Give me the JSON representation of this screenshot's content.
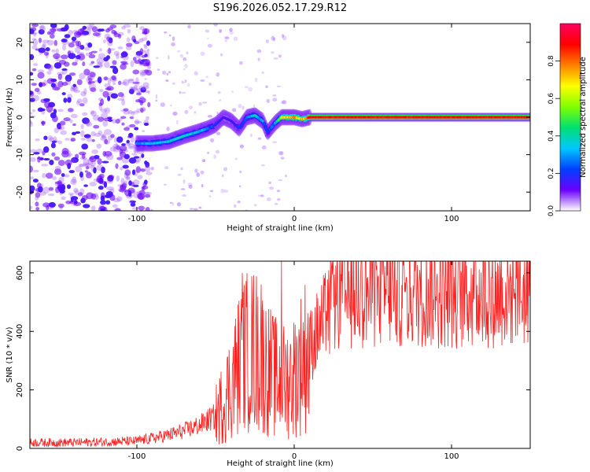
{
  "title": "S196.2026.052.17.29.R12",
  "chart_data": [
    {
      "type": "heatmap",
      "name": "spectrogram",
      "xlabel": "Height of straight line (km)",
      "ylabel": "Frequency (Hz)",
      "xlim": [
        -168,
        150
      ],
      "ylim": [
        -25,
        25
      ],
      "xticks": [
        -100,
        0,
        100
      ],
      "yticks": [
        -20,
        -10,
        0,
        10,
        20
      ],
      "colorbar": {
        "label": "Normalized spectral amplitude",
        "range": [
          0,
          1
        ],
        "ticks": [
          0.0,
          0.2,
          0.4,
          0.6,
          0.8
        ],
        "tick_labels": [
          "0.0",
          "0.2",
          "0.4",
          "0.6",
          "0.8"
        ],
        "colormap": [
          "#ffffff",
          "#6a00ff",
          "#0040ff",
          "#00c8ff",
          "#00e070",
          "#80ff00",
          "#ffff00",
          "#ff8000",
          "#ff0000",
          "#ff0060"
        ]
      },
      "ridge": {
        "description": "dominant frequency track (Hz) vs height (km)",
        "x": [
          -100,
          -90,
          -80,
          -70,
          -62,
          -55,
          -50,
          -45,
          -40,
          -35,
          -30,
          -25,
          -20,
          -17,
          -12,
          -8,
          -4,
          0,
          5,
          10,
          20,
          50,
          100,
          150
        ],
        "y": [
          -7,
          -7,
          -6.5,
          -5,
          -4,
          -3,
          -2,
          0,
          -1,
          -3,
          0,
          0.5,
          -1,
          -4,
          -1.5,
          0,
          0,
          0,
          -0.5,
          0,
          0,
          0,
          0,
          0
        ],
        "amplitude": [
          0.3,
          0.35,
          0.35,
          0.4,
          0.35,
          0.3,
          0.2,
          0.15,
          0.15,
          0.2,
          0.25,
          0.4,
          0.3,
          0.2,
          0.3,
          0.6,
          0.8,
          0.8,
          0.7,
          0.9,
          0.9,
          0.9,
          0.9,
          0.9
        ]
      },
      "noise_region": {
        "xmin": -168,
        "xmax": -100,
        "amplitude": 0.05
      }
    },
    {
      "type": "line",
      "name": "snr",
      "xlabel": "Height of straight line (km)",
      "ylabel": "SNR (10 * v/v)",
      "xlim": [
        -168,
        150
      ],
      "ylim": [
        0,
        640
      ],
      "xticks": [
        -100,
        0,
        100
      ],
      "yticks": [
        0,
        200,
        400,
        600
      ],
      "color": "#ff2020",
      "series": [
        {
          "name": "SNR",
          "x": [
            -168,
            -140,
            -120,
            -100,
            -90,
            -80,
            -70,
            -60,
            -50,
            -45,
            -40,
            -35,
            -30,
            -25,
            -20,
            -15,
            -10,
            -5,
            0,
            5,
            10,
            15,
            20,
            25,
            30,
            40,
            50,
            60,
            80,
            100,
            120,
            140,
            150
          ],
          "y": [
            20,
            20,
            22,
            25,
            35,
            45,
            60,
            80,
            110,
            160,
            220,
            290,
            330,
            340,
            300,
            260,
            230,
            230,
            250,
            300,
            350,
            400,
            450,
            500,
            520,
            530,
            530,
            535,
            535,
            530,
            530,
            535,
            535
          ]
        }
      ],
      "spikes": [
        {
          "x": -33,
          "y": 600
        },
        {
          "x": -21,
          "y": 560
        },
        {
          "x": -8,
          "y": 640
        }
      ]
    }
  ]
}
